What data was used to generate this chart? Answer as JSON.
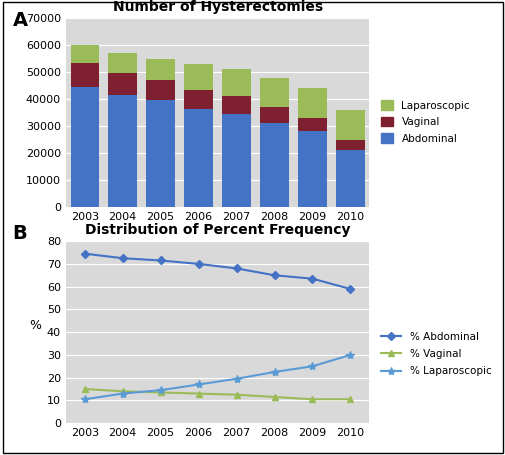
{
  "years": [
    2003,
    2004,
    2005,
    2006,
    2007,
    2008,
    2009,
    2010
  ],
  "abdominal": [
    44500,
    41500,
    39500,
    36500,
    34500,
    31000,
    28000,
    21000
  ],
  "vaginal": [
    9000,
    8000,
    7500,
    7000,
    6500,
    6000,
    5000,
    4000
  ],
  "laparoscopic": [
    6500,
    7500,
    8000,
    9500,
    10000,
    11000,
    11000,
    11000
  ],
  "pct_abdominal": [
    74.5,
    72.5,
    71.5,
    70.0,
    68.0,
    65.0,
    63.5,
    59.0
  ],
  "pct_vaginal": [
    15.0,
    14.0,
    13.5,
    13.0,
    12.5,
    11.5,
    10.5,
    10.5
  ],
  "pct_laparoscopic": [
    10.5,
    13.0,
    14.5,
    17.0,
    19.5,
    22.5,
    25.0,
    30.0
  ],
  "title_a": "Number of Hysterectomies",
  "title_b": "Distribution of Percent Frequency",
  "ylabel_b": "%",
  "ylim_a": [
    0,
    70000
  ],
  "yticks_a": [
    0,
    10000,
    20000,
    30000,
    40000,
    50000,
    60000,
    70000
  ],
  "ylim_b": [
    0,
    80
  ],
  "yticks_b": [
    0,
    10,
    20,
    30,
    40,
    50,
    60,
    70,
    80
  ],
  "color_abdominal": "#4472C4",
  "color_vaginal": "#7F2030",
  "color_laparoscopic": "#9BBB59",
  "color_laparoscopic_line": "#5B9BD5",
  "label_abdominal": "Abdominal",
  "label_vaginal": "Vaginal",
  "label_laparoscopic": "Laparoscopic",
  "label_pct_abdominal": "% Abdominal",
  "label_pct_vaginal": "% Vaginal",
  "label_pct_laparoscopic": "% Laparoscopic",
  "bg_color": "#D9D9D9",
  "grid_color": "#FFFFFF",
  "fig_bg": "#FFFFFF",
  "panel_a_label": "A",
  "panel_b_label": "B"
}
